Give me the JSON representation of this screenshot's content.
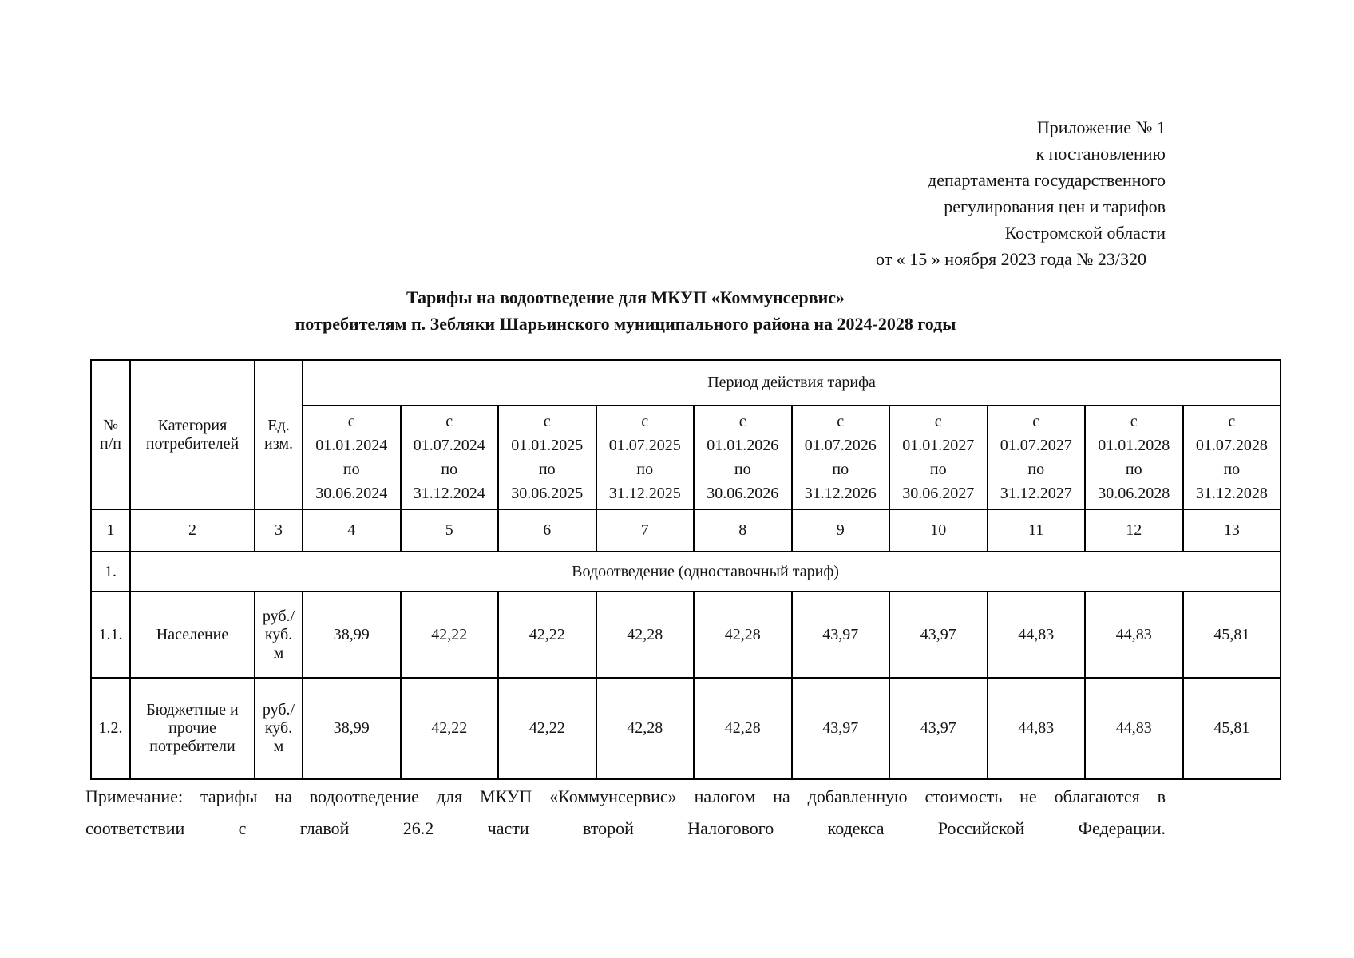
{
  "header": {
    "lines": [
      "Приложение № 1",
      "к постановлению",
      "департамента государственного",
      "регулирования цен и тарифов",
      "Костромской области",
      "от « 15 »  ноября 2023 года № 23/320"
    ]
  },
  "title": {
    "line1": "Тарифы на водоотведение для МКУП «Коммунсервис»",
    "line2": "потребителям п. Зебляки Шарьинского муниципального района на 2024-2028 годы"
  },
  "table": {
    "col_headers": {
      "num": "№ п/п",
      "category": "Категория потребителей",
      "unit": "Ед. изм.",
      "period_group": "Период действия тарифа"
    },
    "period_from_label": "с",
    "period_to_label": "по",
    "periods": [
      {
        "from": "01.01.2024",
        "to": "30.06.2024"
      },
      {
        "from": "01.07.2024",
        "to": "31.12.2024"
      },
      {
        "from": "01.01.2025",
        "to": "30.06.2025"
      },
      {
        "from": "01.07.2025",
        "to": "31.12.2025"
      },
      {
        "from": "01.01.2026",
        "to": "30.06.2026"
      },
      {
        "from": "01.07.2026",
        "to": "31.12.2026"
      },
      {
        "from": "01.01.2027",
        "to": "30.06.2027"
      },
      {
        "from": "01.07.2027",
        "to": "31.12.2027"
      },
      {
        "from": "01.01.2028",
        "to": "30.06.2028"
      },
      {
        "from": "01.07.2028",
        "to": "31.12.2028"
      }
    ],
    "column_numbers": [
      "1",
      "2",
      "3",
      "4",
      "5",
      "6",
      "7",
      "8",
      "9",
      "10",
      "11",
      "12",
      "13"
    ],
    "section": {
      "num": "1.",
      "label": "Водоотведение (одноставочный тариф)"
    },
    "rows": [
      {
        "num": "1.1.",
        "category": "Население",
        "unit": "руб./куб. м",
        "values": [
          "38,99",
          "42,22",
          "42,22",
          "42,28",
          "42,28",
          "43,97",
          "43,97",
          "44,83",
          "44,83",
          "45,81"
        ]
      },
      {
        "num": "1.2.",
        "category": "Бюджетные и прочие потребители",
        "unit": "руб./куб. м",
        "values": [
          "38,99",
          "42,22",
          "42,22",
          "42,28",
          "42,28",
          "43,97",
          "43,97",
          "44,83",
          "44,83",
          "45,81"
        ]
      }
    ]
  },
  "note": {
    "line1": "Примечание: тарифы на водоотведение для МКУП «Коммунсервис» налогом на добавленную стоимость не облагаются в",
    "line2": "соответствии с главой 26.2 части второй Налогового кодекса Российской Федерации."
  }
}
